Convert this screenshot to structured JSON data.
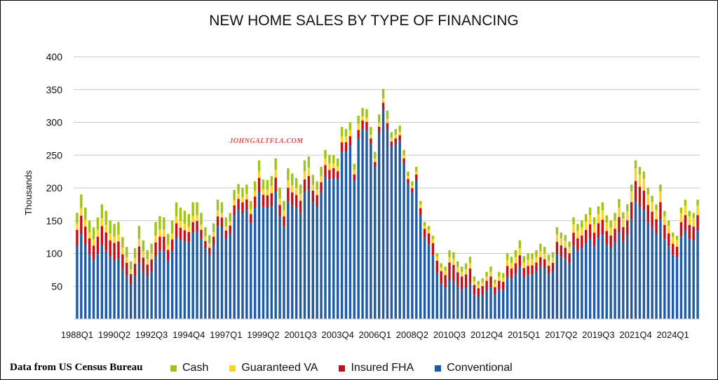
{
  "chart_data": {
    "type": "bar",
    "stacked": true,
    "title": "NEW HOME SALES BY TYPE OF FINANCING",
    "watermark": "JOHNGALTFLA.COM",
    "source_note": "Data from US Census Bureau",
    "ylabel": "Thousands",
    "ylim": [
      0,
      400
    ],
    "yticks": [
      50,
      100,
      150,
      200,
      250,
      300,
      350,
      400
    ],
    "grid": "horizontal",
    "legend_position": "bottom",
    "x_tick_labels": [
      "1988Q1",
      "1990Q2",
      "1992Q3",
      "1994Q4",
      "1997Q1",
      "1999Q2",
      "2001Q3",
      "2003Q4",
      "2006Q1",
      "2008Q2",
      "2010Q3",
      "2012Q4",
      "2015Q1",
      "2017Q2",
      "2019Q3",
      "2021Q4",
      "2024Q1"
    ],
    "series_order": [
      "Conventional",
      "Insured FHA",
      "Guaranteed VA",
      "Cash"
    ],
    "legend_order": [
      "Cash",
      "Guaranteed VA",
      "Insured FHA",
      "Conventional"
    ],
    "colors": {
      "Conventional": "#1f5aa3",
      "Insured FHA": "#c0101a",
      "Guaranteed VA": "#ffd320",
      "Cash": "#9ec41a"
    },
    "first_quarter": "1988Q1",
    "totals": [
      162,
      190,
      170,
      150,
      140,
      155,
      175,
      165,
      150,
      145,
      148,
      125,
      110,
      88,
      108,
      142,
      120,
      105,
      115,
      148,
      157,
      155,
      130,
      150,
      178,
      170,
      165,
      160,
      178,
      178,
      162,
      140,
      128,
      146,
      182,
      178,
      155,
      162,
      197,
      206,
      200,
      205,
      180,
      210,
      242,
      213,
      212,
      218,
      245,
      200,
      180,
      230,
      222,
      215,
      205,
      242,
      248,
      220,
      210,
      232,
      258,
      250,
      250,
      245,
      293,
      290,
      300,
      237,
      310,
      322,
      320,
      293,
      255,
      312,
      351,
      318,
      285,
      290,
      295,
      258,
      225,
      210,
      232,
      180,
      148,
      142,
      127,
      100,
      85,
      80,
      105,
      102,
      88,
      80,
      85,
      95,
      65,
      58,
      62,
      72,
      80,
      60,
      72,
      70,
      100,
      95,
      105,
      120,
      96,
      100,
      100,
      105,
      115,
      110,
      98,
      102,
      140,
      132,
      128,
      118,
      155,
      145,
      150,
      160,
      170,
      155,
      172,
      178,
      158,
      150,
      162,
      183,
      163,
      175,
      205,
      242,
      232,
      225,
      200,
      188,
      175,
      205,
      165,
      150,
      132,
      127,
      170,
      182,
      165,
      162,
      182
    ],
    "conventional_share": [
      0.69,
      0.68,
      0.67,
      0.66,
      0.64,
      0.64,
      0.64,
      0.63,
      0.63,
      0.62,
      0.62,
      0.61,
      0.6,
      0.6,
      0.6,
      0.6,
      0.61,
      0.62,
      0.63,
      0.64,
      0.66,
      0.67,
      0.68,
      0.69,
      0.7,
      0.71,
      0.72,
      0.73,
      0.74,
      0.75,
      0.76,
      0.77,
      0.77,
      0.78,
      0.78,
      0.79,
      0.79,
      0.8,
      0.8,
      0.81,
      0.81,
      0.81,
      0.81,
      0.81,
      0.8,
      0.8,
      0.8,
      0.79,
      0.79,
      0.78,
      0.78,
      0.78,
      0.78,
      0.79,
      0.79,
      0.8,
      0.8,
      0.81,
      0.82,
      0.83,
      0.84,
      0.85,
      0.86,
      0.87,
      0.87,
      0.88,
      0.88,
      0.89,
      0.89,
      0.9,
      0.9,
      0.91,
      0.91,
      0.91,
      0.91,
      0.91,
      0.92,
      0.92,
      0.92,
      0.92,
      0.92,
      0.92,
      0.91,
      0.88,
      0.84,
      0.8,
      0.76,
      0.7,
      0.64,
      0.6,
      0.57,
      0.56,
      0.56,
      0.56,
      0.56,
      0.57,
      0.57,
      0.58,
      0.59,
      0.6,
      0.61,
      0.62,
      0.62,
      0.63,
      0.64,
      0.65,
      0.65,
      0.66,
      0.66,
      0.67,
      0.68,
      0.69,
      0.69,
      0.7,
      0.7,
      0.71,
      0.71,
      0.72,
      0.72,
      0.72,
      0.72,
      0.72,
      0.72,
      0.72,
      0.72,
      0.72,
      0.72,
      0.72,
      0.72,
      0.72,
      0.72,
      0.72,
      0.73,
      0.73,
      0.74,
      0.74,
      0.74,
      0.74,
      0.74,
      0.74,
      0.74,
      0.74,
      0.74,
      0.74,
      0.74,
      0.74,
      0.74,
      0.74,
      0.74,
      0.74,
      0.74
    ],
    "fha_share": [
      0.15,
      0.15,
      0.16,
      0.16,
      0.16,
      0.17,
      0.17,
      0.17,
      0.17,
      0.18,
      0.18,
      0.18,
      0.18,
      0.18,
      0.18,
      0.18,
      0.17,
      0.17,
      0.16,
      0.15,
      0.14,
      0.14,
      0.13,
      0.12,
      0.12,
      0.11,
      0.1,
      0.1,
      0.09,
      0.09,
      0.08,
      0.08,
      0.08,
      0.08,
      0.08,
      0.08,
      0.08,
      0.08,
      0.08,
      0.08,
      0.08,
      0.08,
      0.08,
      0.08,
      0.09,
      0.09,
      0.09,
      0.09,
      0.09,
      0.09,
      0.09,
      0.09,
      0.09,
      0.09,
      0.09,
      0.08,
      0.08,
      0.08,
      0.08,
      0.07,
      0.07,
      0.06,
      0.06,
      0.05,
      0.05,
      0.05,
      0.05,
      0.04,
      0.04,
      0.04,
      0.04,
      0.03,
      0.03,
      0.03,
      0.03,
      0.03,
      0.03,
      0.03,
      0.03,
      0.03,
      0.03,
      0.03,
      0.04,
      0.06,
      0.09,
      0.12,
      0.15,
      0.19,
      0.22,
      0.24,
      0.25,
      0.25,
      0.25,
      0.25,
      0.24,
      0.24,
      0.23,
      0.23,
      0.22,
      0.21,
      0.2,
      0.19,
      0.19,
      0.18,
      0.17,
      0.16,
      0.16,
      0.15,
      0.15,
      0.14,
      0.14,
      0.13,
      0.13,
      0.13,
      0.13,
      0.13,
      0.13,
      0.13,
      0.13,
      0.13,
      0.13,
      0.13,
      0.13,
      0.13,
      0.13,
      0.13,
      0.13,
      0.13,
      0.13,
      0.13,
      0.13,
      0.13,
      0.13,
      0.13,
      0.13,
      0.13,
      0.13,
      0.13,
      0.13,
      0.13,
      0.13,
      0.13,
      0.13,
      0.13,
      0.13,
      0.13,
      0.13,
      0.13,
      0.13,
      0.13,
      0.13
    ],
    "va_share": [
      0.06,
      0.06,
      0.06,
      0.06,
      0.07,
      0.07,
      0.07,
      0.07,
      0.07,
      0.07,
      0.07,
      0.08,
      0.08,
      0.08,
      0.08,
      0.08,
      0.08,
      0.08,
      0.08,
      0.07,
      0.07,
      0.07,
      0.06,
      0.06,
      0.06,
      0.06,
      0.06,
      0.05,
      0.05,
      0.05,
      0.05,
      0.05,
      0.05,
      0.05,
      0.05,
      0.04,
      0.04,
      0.04,
      0.04,
      0.04,
      0.04,
      0.04,
      0.04,
      0.04,
      0.04,
      0.04,
      0.04,
      0.05,
      0.05,
      0.05,
      0.05,
      0.05,
      0.05,
      0.05,
      0.05,
      0.05,
      0.05,
      0.04,
      0.04,
      0.04,
      0.04,
      0.04,
      0.03,
      0.03,
      0.03,
      0.03,
      0.03,
      0.03,
      0.03,
      0.02,
      0.02,
      0.02,
      0.02,
      0.02,
      0.02,
      0.02,
      0.02,
      0.02,
      0.02,
      0.02,
      0.02,
      0.02,
      0.02,
      0.03,
      0.03,
      0.04,
      0.05,
      0.06,
      0.07,
      0.08,
      0.08,
      0.09,
      0.09,
      0.09,
      0.09,
      0.09,
      0.09,
      0.09,
      0.09,
      0.09,
      0.09,
      0.09,
      0.09,
      0.09,
      0.09,
      0.09,
      0.09,
      0.09,
      0.09,
      0.09,
      0.09,
      0.08,
      0.08,
      0.08,
      0.08,
      0.08,
      0.08,
      0.08,
      0.08,
      0.08,
      0.08,
      0.08,
      0.08,
      0.08,
      0.08,
      0.08,
      0.08,
      0.08,
      0.08,
      0.08,
      0.08,
      0.08,
      0.08,
      0.08,
      0.08,
      0.08,
      0.08,
      0.08,
      0.08,
      0.08,
      0.08,
      0.08,
      0.08,
      0.08,
      0.08,
      0.08,
      0.08,
      0.08,
      0.08,
      0.08,
      0.08
    ]
  }
}
